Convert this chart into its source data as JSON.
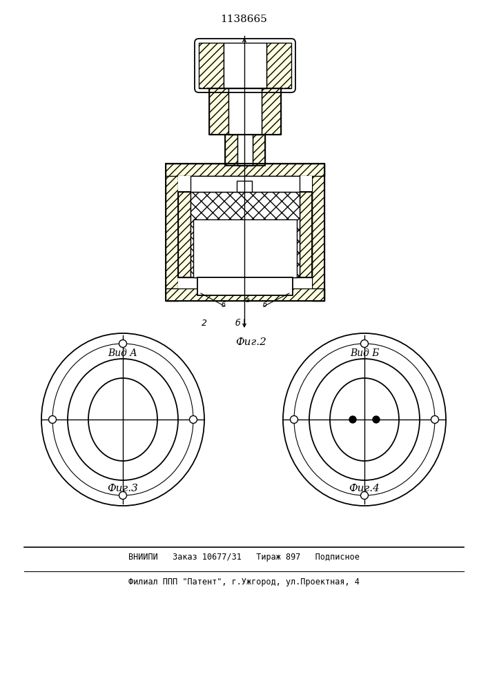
{
  "title": "1138665",
  "title_fontsize": 11,
  "fig2_label": "Фиг.2",
  "fig3_label": "Фиг.3",
  "fig4_label": "Фиг.4",
  "vid_A_label": "Вид А",
  "vid_B_label": "Вид Б",
  "bottom_line1": "ВНИИПИ   Заказ 10677/31   Тираж 897   Подписное",
  "bottom_line2": "Филиал ППП \"Патент\", г.Ужгород, ул.Проектная, 4",
  "line_color": "#000000",
  "bg_color": "#ffffff",
  "fig_width": 7.07,
  "fig_height": 10.0
}
